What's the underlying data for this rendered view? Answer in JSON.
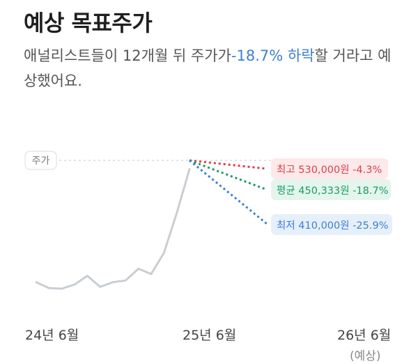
{
  "header": {
    "title": "예상 목표주가",
    "desc_before": "애널리스트들이 12개월 뒤 주가가",
    "desc_highlight": "-18.7% 하락",
    "desc_after": "할 거라고 예상했어요."
  },
  "chart_data": {
    "type": "line",
    "title": "",
    "price_tag": "주가",
    "x_labels": [
      "24년 6월",
      "25년 6월",
      "26년 6월"
    ],
    "x_sublabel": "(예상)",
    "history": {
      "x": [
        0,
        1,
        2,
        3,
        4,
        5,
        6,
        7,
        8,
        9,
        10,
        11,
        12
      ],
      "y": [
        472000,
        462000,
        461000,
        468000,
        483000,
        464000,
        472000,
        475000,
        495000,
        486000,
        522000,
        590000,
        665000
      ]
    },
    "ylim": [
      430000,
      680000
    ],
    "current_price_label": "",
    "targets": [
      {
        "key": "high",
        "label": "최고 530,000원 -4.3%",
        "color": "#d9414a",
        "bg": "#fde9ea"
      },
      {
        "key": "avg",
        "label": "평균 450,333원 -18.7%",
        "color": "#1e9b63",
        "bg": "#e3f5ec"
      },
      {
        "key": "low",
        "label": "최저 410,000원 -25.9%",
        "color": "#3c7fcf",
        "bg": "#e6f0fb"
      }
    ],
    "colors": {
      "history_line": "#c9ced3",
      "reference_line": "#d6dadd"
    }
  }
}
